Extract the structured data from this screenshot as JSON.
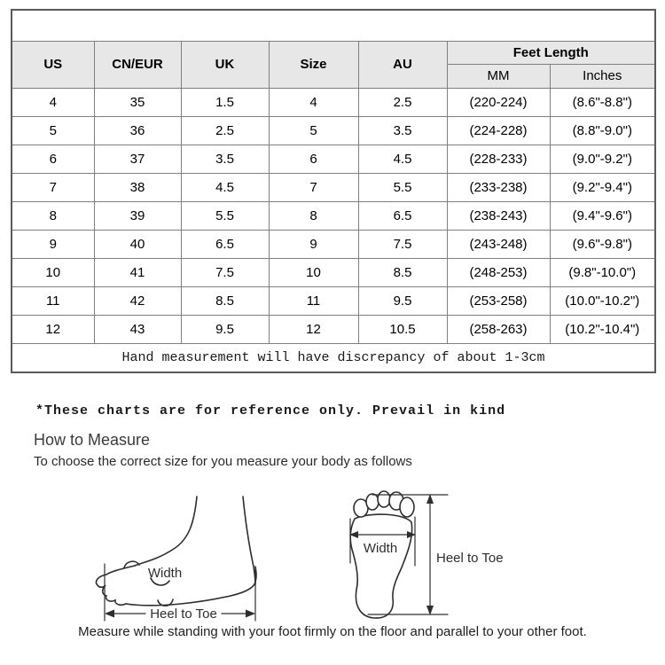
{
  "table": {
    "headers": {
      "us": "US",
      "cn_eur": "CN/EUR",
      "uk": "UK",
      "size": "Size",
      "au": "AU",
      "feet_length": "Feet Length",
      "mm": "MM",
      "inches": "Inches"
    },
    "rows": [
      [
        "4",
        "35",
        "1.5",
        "4",
        "2.5",
        "(220-224)",
        "(8.6\"-8.8\")"
      ],
      [
        "5",
        "36",
        "2.5",
        "5",
        "3.5",
        "(224-228)",
        "(8.8\"-9.0\")"
      ],
      [
        "6",
        "37",
        "3.5",
        "6",
        "4.5",
        "(228-233)",
        "(9.0\"-9.2\")"
      ],
      [
        "7",
        "38",
        "4.5",
        "7",
        "5.5",
        "(233-238)",
        "(9.2\"-9.4\")"
      ],
      [
        "8",
        "39",
        "5.5",
        "8",
        "6.5",
        "(238-243)",
        "(9.4\"-9.6\")"
      ],
      [
        "9",
        "40",
        "6.5",
        "9",
        "7.5",
        "(243-248)",
        "(9.6\"-9.8\")"
      ],
      [
        "10",
        "41",
        "7.5",
        "10",
        "8.5",
        "(248-253)",
        "(9.8\"-10.0\")"
      ],
      [
        "11",
        "42",
        "8.5",
        "11",
        "9.5",
        "(253-258)",
        "(10.0\"-10.2\")"
      ],
      [
        "12",
        "43",
        "9.5",
        "12",
        "10.5",
        "(258-263)",
        "(10.2\"-10.4\")"
      ]
    ],
    "footnote": "Hand measurement will have discrepancy of about 1-3cm"
  },
  "notes": {
    "reference": "*These charts are for reference only. Prevail in kind"
  },
  "how_to_measure": {
    "title": "How to Measure",
    "subtitle": "To choose the correct size for you measure your body as follows",
    "caption": "Measure while standing with your foot firmly on the floor and parallel to your other foot."
  },
  "diagrams": {
    "side_view": {
      "width_label": "Width",
      "length_label": "Heel to Toe"
    },
    "sole_view": {
      "width_label": "Width",
      "length_label": "Heel to Toe"
    }
  },
  "colors": {
    "header_bg": "#e7e7e7",
    "border_inner": "#7f7f7f",
    "border_outer": "#5a5a5a",
    "text": "#000000"
  }
}
